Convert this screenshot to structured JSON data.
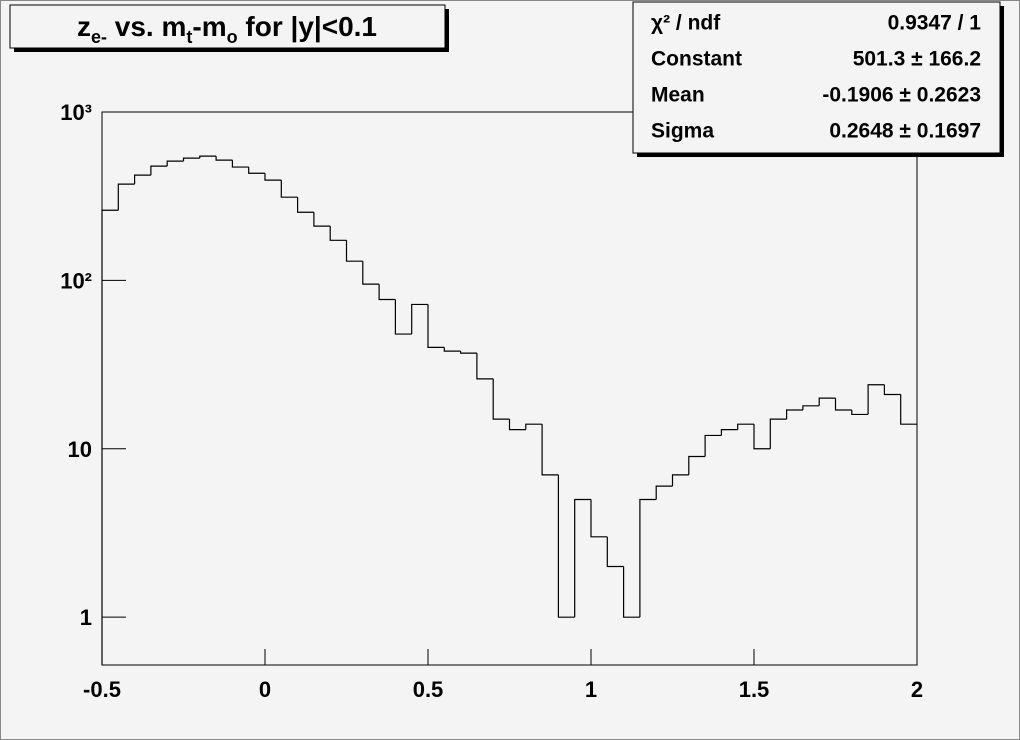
{
  "chart_data": {
    "type": "histogram",
    "title": [
      {
        "text": "z"
      },
      {
        "text": "e-",
        "sub": true
      },
      {
        "text": " vs. m"
      },
      {
        "text": "t",
        "sub": true
      },
      {
        "text": "-m"
      },
      {
        "text": "o",
        "sub": true
      },
      {
        "text": " for |y|<0.1"
      }
    ],
    "bins": [
      -0.5,
      -0.45,
      -0.4,
      -0.35,
      -0.3,
      -0.25,
      -0.2,
      -0.15,
      -0.1,
      -0.05,
      0,
      0.05,
      0.1,
      0.15,
      0.2,
      0.25,
      0.3,
      0.35,
      0.4,
      0.45,
      0.5,
      0.55,
      0.6,
      0.65,
      0.7,
      0.75,
      0.8,
      0.85,
      0.9,
      0.95,
      1,
      1.05,
      1.1,
      1.15,
      1.2,
      1.25,
      1.3,
      1.35,
      1.4,
      1.45,
      1.5,
      1.55,
      1.6,
      1.65,
      1.7,
      1.75,
      1.8,
      1.85,
      1.9,
      1.95,
      2
    ],
    "values": [
      261,
      373,
      422,
      477,
      511,
      532,
      547,
      518,
      471,
      433,
      394,
      312,
      254,
      210,
      173,
      130,
      95,
      77,
      48,
      72,
      40,
      38,
      37,
      26,
      15,
      13,
      14,
      7,
      1,
      5,
      3,
      2,
      1,
      5,
      6,
      7,
      9,
      12,
      13,
      14,
      10,
      15,
      17,
      18,
      20,
      17,
      16,
      24,
      21,
      14
    ],
    "color": "#000000",
    "xlim": [
      -0.5,
      2
    ],
    "xticks": [
      -0.5,
      0,
      0.5,
      1,
      1.5,
      2
    ],
    "ylim": [
      0.52,
      1000
    ],
    "log_y": true,
    "yticks": [
      1,
      10,
      {
        "value": 100,
        "label": "10²"
      },
      {
        "value": 1000,
        "label": "10³"
      }
    ],
    "stats": [
      {
        "label": "χ² / ndf",
        "value": "0.9347 / 1"
      },
      {
        "label": "Constant",
        "value": "501.3 ± 166.2"
      },
      {
        "label": "Mean",
        "value": "-0.1906 ± 0.2623"
      },
      {
        "label": "Sigma",
        "value": "0.2648 ± 0.1697"
      }
    ]
  }
}
